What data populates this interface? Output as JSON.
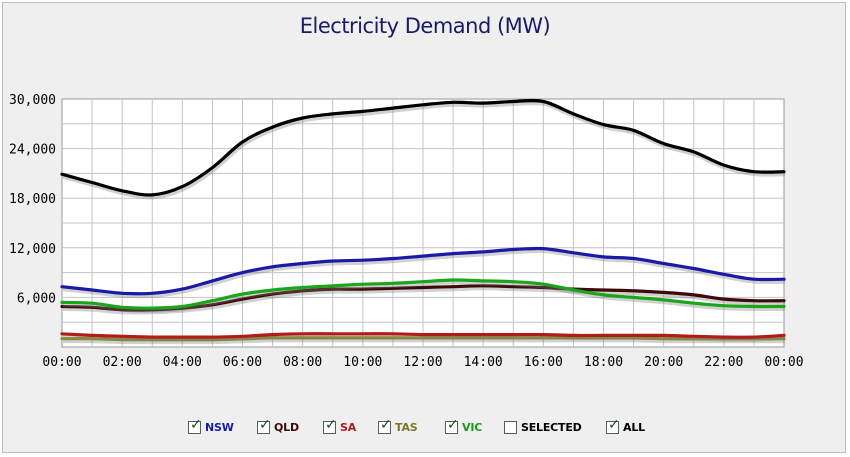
{
  "chart_data": {
    "type": "line",
    "title": "Electricity Demand (MW)",
    "xlabel": "",
    "ylabel": "",
    "x": [
      "00:00",
      "01:00",
      "02:00",
      "03:00",
      "04:00",
      "05:00",
      "06:00",
      "07:00",
      "08:00",
      "09:00",
      "10:00",
      "11:00",
      "12:00",
      "13:00",
      "14:00",
      "15:00",
      "16:00",
      "17:00",
      "18:00",
      "19:00",
      "20:00",
      "21:00",
      "22:00",
      "23:00",
      "24:00"
    ],
    "xticks": [
      "00:00",
      "02:00",
      "04:00",
      "06:00",
      "08:00",
      "10:00",
      "12:00",
      "14:00",
      "16:00",
      "18:00",
      "20:00",
      "22:00",
      "00:00"
    ],
    "yticks": [
      "6,000",
      "12,000",
      "18,000",
      "24,000",
      "30,000"
    ],
    "ytick_values": [
      6000,
      12000,
      18000,
      24000,
      30000
    ],
    "ylim": [
      0,
      30000
    ],
    "grid": true,
    "series": [
      {
        "name": "ALL",
        "color": "#000000",
        "values": [
          20900,
          19900,
          18900,
          18400,
          19400,
          21700,
          24800,
          26600,
          27700,
          28200,
          28500,
          28900,
          29300,
          29600,
          29500,
          29700,
          29700,
          28200,
          26900,
          26200,
          24600,
          23600,
          22000,
          21200,
          21200
        ]
      },
      {
        "name": "NSW",
        "color": "#1a1aa6",
        "values": [
          7300,
          6900,
          6500,
          6500,
          7000,
          8000,
          9000,
          9700,
          10100,
          10400,
          10500,
          10700,
          11000,
          11300,
          11500,
          11800,
          11900,
          11400,
          10900,
          10700,
          10100,
          9500,
          8800,
          8200,
          8200
        ]
      },
      {
        "name": "VIC",
        "color": "#1aa61a",
        "values": [
          5400,
          5300,
          4800,
          4700,
          4900,
          5600,
          6400,
          6900,
          7200,
          7400,
          7600,
          7700,
          7900,
          8100,
          8000,
          7900,
          7600,
          6900,
          6300,
          6000,
          5700,
          5300,
          5000,
          4900,
          4900
        ]
      },
      {
        "name": "QLD",
        "color": "#3d0a0a",
        "values": [
          4900,
          4800,
          4500,
          4500,
          4700,
          5100,
          5800,
          6400,
          6800,
          7000,
          7000,
          7100,
          7200,
          7300,
          7400,
          7300,
          7200,
          7000,
          6900,
          6800,
          6600,
          6300,
          5800,
          5600,
          5600
        ]
      },
      {
        "name": "SA",
        "color": "#b31a1a",
        "values": [
          1600,
          1400,
          1300,
          1200,
          1200,
          1200,
          1300,
          1500,
          1600,
          1600,
          1600,
          1600,
          1500,
          1500,
          1500,
          1500,
          1500,
          1400,
          1400,
          1400,
          1400,
          1300,
          1200,
          1200,
          1400
        ]
      },
      {
        "name": "TAS",
        "color": "#8c8c2e",
        "values": [
          1000,
          1000,
          900,
          900,
          900,
          900,
          1000,
          1100,
          1100,
          1100,
          1100,
          1100,
          1100,
          1100,
          1100,
          1100,
          1100,
          1100,
          1100,
          1100,
          1000,
          1000,
          1000,
          1000,
          1000
        ]
      }
    ]
  },
  "legend": [
    {
      "label": "NSW",
      "checked": true,
      "color": "#1a1aa6"
    },
    {
      "label": "QLD",
      "checked": true,
      "color": "#3d0a0a"
    },
    {
      "label": "SA",
      "checked": true,
      "color": "#b31a1a"
    },
    {
      "label": "TAS",
      "checked": true,
      "color": "#7a7a24"
    },
    {
      "label": "VIC",
      "checked": true,
      "color": "#1a9a1a"
    },
    {
      "label": "SELECTED",
      "checked": false,
      "color": "#000000"
    },
    {
      "label": "ALL",
      "checked": true,
      "color": "#000000"
    }
  ],
  "check_glyph": "✓"
}
